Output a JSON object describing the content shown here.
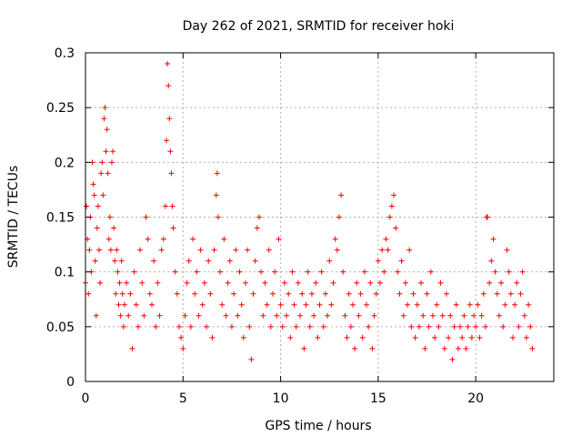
{
  "chart_data": {
    "type": "scatter",
    "title": "Day 262 of 2021, SRMTID for receiver hoki",
    "xlabel": "GPS time / hours",
    "ylabel": "SRMTID / TECUs",
    "xlim": [
      0,
      24
    ],
    "ylim": [
      0,
      0.3
    ],
    "xticks": [
      0,
      5,
      10,
      15,
      20
    ],
    "xtick_labels": [
      "0",
      "5",
      "10",
      "15",
      "20"
    ],
    "yticks": [
      0,
      0.05,
      0.1,
      0.15,
      0.2,
      0.25,
      0.3
    ],
    "ytick_labels": [
      "0",
      "0.05",
      "0.1",
      "0.15",
      "0.2",
      "0.25",
      "0.3"
    ],
    "grid": true,
    "marker": "+",
    "color": "#ff0000",
    "series": [
      {
        "name": "SRMTID",
        "points": [
          [
            0.0,
            0.09
          ],
          [
            0.05,
            0.16
          ],
          [
            0.1,
            0.13
          ],
          [
            0.15,
            0.08
          ],
          [
            0.2,
            0.12
          ],
          [
            0.25,
            0.15
          ],
          [
            0.3,
            0.1
          ],
          [
            0.35,
            0.2
          ],
          [
            0.4,
            0.18
          ],
          [
            0.45,
            0.17
          ],
          [
            0.5,
            0.11
          ],
          [
            0.55,
            0.06
          ],
          [
            0.6,
            0.14
          ],
          [
            0.65,
            0.16
          ],
          [
            0.7,
            0.12
          ],
          [
            0.75,
            0.09
          ],
          [
            0.8,
            0.19
          ],
          [
            0.85,
            0.2
          ],
          [
            0.9,
            0.17
          ],
          [
            0.95,
            0.24
          ],
          [
            1.0,
            0.25
          ],
          [
            1.05,
            0.21
          ],
          [
            1.1,
            0.23
          ],
          [
            1.15,
            0.19
          ],
          [
            1.2,
            0.13
          ],
          [
            1.25,
            0.15
          ],
          [
            1.3,
            0.12
          ],
          [
            1.35,
            0.2
          ],
          [
            1.4,
            0.21
          ],
          [
            1.45,
            0.14
          ],
          [
            1.5,
            0.11
          ],
          [
            1.55,
            0.08
          ],
          [
            1.6,
            0.12
          ],
          [
            1.65,
            0.1
          ],
          [
            1.7,
            0.07
          ],
          [
            1.75,
            0.09
          ],
          [
            1.8,
            0.06
          ],
          [
            1.85,
            0.11
          ],
          [
            1.9,
            0.08
          ],
          [
            1.95,
            0.05
          ],
          [
            2.0,
            0.07
          ],
          [
            2.1,
            0.09
          ],
          [
            2.2,
            0.06
          ],
          [
            2.3,
            0.08
          ],
          [
            2.4,
            0.03
          ],
          [
            2.5,
            0.1
          ],
          [
            2.6,
            0.07
          ],
          [
            2.7,
            0.05
          ],
          [
            2.8,
            0.12
          ],
          [
            2.9,
            0.09
          ],
          [
            3.0,
            0.06
          ],
          [
            3.1,
            0.15
          ],
          [
            3.2,
            0.13
          ],
          [
            3.3,
            0.08
          ],
          [
            3.4,
            0.07
          ],
          [
            3.5,
            0.11
          ],
          [
            3.6,
            0.05
          ],
          [
            3.7,
            0.09
          ],
          [
            3.8,
            0.06
          ],
          [
            3.9,
            0.12
          ],
          [
            4.0,
            0.13
          ],
          [
            4.1,
            0.16
          ],
          [
            4.15,
            0.22
          ],
          [
            4.2,
            0.29
          ],
          [
            4.25,
            0.27
          ],
          [
            4.3,
            0.24
          ],
          [
            4.35,
            0.21
          ],
          [
            4.4,
            0.19
          ],
          [
            4.45,
            0.16
          ],
          [
            4.5,
            0.14
          ],
          [
            4.6,
            0.1
          ],
          [
            4.7,
            0.08
          ],
          [
            4.8,
            0.05
          ],
          [
            4.9,
            0.04
          ],
          [
            5.0,
            0.03
          ],
          [
            5.1,
            0.06
          ],
          [
            5.2,
            0.09
          ],
          [
            5.3,
            0.11
          ],
          [
            5.4,
            0.05
          ],
          [
            5.5,
            0.13
          ],
          [
            5.6,
            0.08
          ],
          [
            5.7,
            0.1
          ],
          [
            5.8,
            0.06
          ],
          [
            5.9,
            0.12
          ],
          [
            6.0,
            0.07
          ],
          [
            6.1,
            0.09
          ],
          [
            6.2,
            0.05
          ],
          [
            6.3,
            0.11
          ],
          [
            6.4,
            0.08
          ],
          [
            6.5,
            0.04
          ],
          [
            6.6,
            0.12
          ],
          [
            6.7,
            0.17
          ],
          [
            6.75,
            0.19
          ],
          [
            6.8,
            0.15
          ],
          [
            6.9,
            0.1
          ],
          [
            7.0,
            0.07
          ],
          [
            7.1,
            0.13
          ],
          [
            7.2,
            0.06
          ],
          [
            7.3,
            0.09
          ],
          [
            7.4,
            0.11
          ],
          [
            7.5,
            0.05
          ],
          [
            7.6,
            0.08
          ],
          [
            7.7,
            0.12
          ],
          [
            7.8,
            0.06
          ],
          [
            7.9,
            0.1
          ],
          [
            8.0,
            0.07
          ],
          [
            8.1,
            0.04
          ],
          [
            8.2,
            0.09
          ],
          [
            8.3,
            0.12
          ],
          [
            8.4,
            0.05
          ],
          [
            8.5,
            0.02
          ],
          [
            8.6,
            0.08
          ],
          [
            8.7,
            0.11
          ],
          [
            8.8,
            0.14
          ],
          [
            8.9,
            0.15
          ],
          [
            9.0,
            0.1
          ],
          [
            9.1,
            0.06
          ],
          [
            9.2,
            0.09
          ],
          [
            9.3,
            0.07
          ],
          [
            9.4,
            0.12
          ],
          [
            9.5,
            0.05
          ],
          [
            9.6,
            0.08
          ],
          [
            9.7,
            0.1
          ],
          [
            9.8,
            0.06
          ],
          [
            9.9,
            0.13
          ],
          [
            10.0,
            0.07
          ],
          [
            10.1,
            0.05
          ],
          [
            10.2,
            0.09
          ],
          [
            10.3,
            0.06
          ],
          [
            10.4,
            0.08
          ],
          [
            10.5,
            0.04
          ],
          [
            10.6,
            0.1
          ],
          [
            10.7,
            0.07
          ],
          [
            10.8,
            0.05
          ],
          [
            10.9,
            0.09
          ],
          [
            11.0,
            0.06
          ],
          [
            11.1,
            0.08
          ],
          [
            11.2,
            0.03
          ],
          [
            11.3,
            0.07
          ],
          [
            11.4,
            0.1
          ],
          [
            11.5,
            0.05
          ],
          [
            11.6,
            0.08
          ],
          [
            11.7,
            0.06
          ],
          [
            11.8,
            0.09
          ],
          [
            11.9,
            0.04
          ],
          [
            12.0,
            0.07
          ],
          [
            12.1,
            0.1
          ],
          [
            12.2,
            0.05
          ],
          [
            12.3,
            0.08
          ],
          [
            12.4,
            0.06
          ],
          [
            12.5,
            0.11
          ],
          [
            12.6,
            0.07
          ],
          [
            12.7,
            0.09
          ],
          [
            12.8,
            0.13
          ],
          [
            12.9,
            0.12
          ],
          [
            13.0,
            0.15
          ],
          [
            13.1,
            0.17
          ],
          [
            13.2,
            0.1
          ],
          [
            13.3,
            0.06
          ],
          [
            13.4,
            0.04
          ],
          [
            13.5,
            0.08
          ],
          [
            13.6,
            0.05
          ],
          [
            13.7,
            0.07
          ],
          [
            13.8,
            0.03
          ],
          [
            13.9,
            0.09
          ],
          [
            14.0,
            0.06
          ],
          [
            14.1,
            0.08
          ],
          [
            14.2,
            0.04
          ],
          [
            14.3,
            0.1
          ],
          [
            14.4,
            0.07
          ],
          [
            14.5,
            0.05
          ],
          [
            14.6,
            0.09
          ],
          [
            14.7,
            0.03
          ],
          [
            14.8,
            0.06
          ],
          [
            14.9,
            0.08
          ],
          [
            15.0,
            0.11
          ],
          [
            15.1,
            0.09
          ],
          [
            15.2,
            0.12
          ],
          [
            15.3,
            0.1
          ],
          [
            15.4,
            0.13
          ],
          [
            15.5,
            0.12
          ],
          [
            15.6,
            0.15
          ],
          [
            15.7,
            0.16
          ],
          [
            15.8,
            0.17
          ],
          [
            15.9,
            0.14
          ],
          [
            16.0,
            0.1
          ],
          [
            16.1,
            0.08
          ],
          [
            16.2,
            0.11
          ],
          [
            16.3,
            0.06
          ],
          [
            16.4,
            0.09
          ],
          [
            16.5,
            0.07
          ],
          [
            16.6,
            0.12
          ],
          [
            16.7,
            0.05
          ],
          [
            16.8,
            0.08
          ],
          [
            16.9,
            0.04
          ],
          [
            17.0,
            0.07
          ],
          [
            17.1,
            0.05
          ],
          [
            17.2,
            0.09
          ],
          [
            17.3,
            0.06
          ],
          [
            17.4,
            0.03
          ],
          [
            17.5,
            0.08
          ],
          [
            17.6,
            0.05
          ],
          [
            17.7,
            0.1
          ],
          [
            17.8,
            0.06
          ],
          [
            17.9,
            0.04
          ],
          [
            18.0,
            0.07
          ],
          [
            18.1,
            0.05
          ],
          [
            18.2,
            0.09
          ],
          [
            18.3,
            0.06
          ],
          [
            18.4,
            0.03
          ],
          [
            18.5,
            0.08
          ],
          [
            18.6,
            0.04
          ],
          [
            18.7,
            0.06
          ],
          [
            18.8,
            0.02
          ],
          [
            18.9,
            0.05
          ],
          [
            19.0,
            0.07
          ],
          [
            19.1,
            0.03
          ],
          [
            19.2,
            0.05
          ],
          [
            19.3,
            0.04
          ],
          [
            19.4,
            0.06
          ],
          [
            19.5,
            0.03
          ],
          [
            19.6,
            0.05
          ],
          [
            19.7,
            0.07
          ],
          [
            19.8,
            0.04
          ],
          [
            19.9,
            0.06
          ],
          [
            20.0,
            0.05
          ],
          [
            20.1,
            0.07
          ],
          [
            20.2,
            0.04
          ],
          [
            20.3,
            0.06
          ],
          [
            20.4,
            0.08
          ],
          [
            20.5,
            0.05
          ],
          [
            20.55,
            0.15
          ],
          [
            20.6,
            0.15
          ],
          [
            20.7,
            0.09
          ],
          [
            20.8,
            0.11
          ],
          [
            20.9,
            0.13
          ],
          [
            21.0,
            0.1
          ],
          [
            21.1,
            0.08
          ],
          [
            21.2,
            0.06
          ],
          [
            21.3,
            0.09
          ],
          [
            21.4,
            0.05
          ],
          [
            21.5,
            0.07
          ],
          [
            21.6,
            0.12
          ],
          [
            21.7,
            0.1
          ],
          [
            21.8,
            0.08
          ],
          [
            21.9,
            0.04
          ],
          [
            22.0,
            0.07
          ],
          [
            22.1,
            0.09
          ],
          [
            22.2,
            0.05
          ],
          [
            22.3,
            0.08
          ],
          [
            22.4,
            0.1
          ],
          [
            22.5,
            0.06
          ],
          [
            22.6,
            0.04
          ],
          [
            22.7,
            0.07
          ],
          [
            22.8,
            0.05
          ],
          [
            22.9,
            0.03
          ]
        ]
      }
    ]
  }
}
